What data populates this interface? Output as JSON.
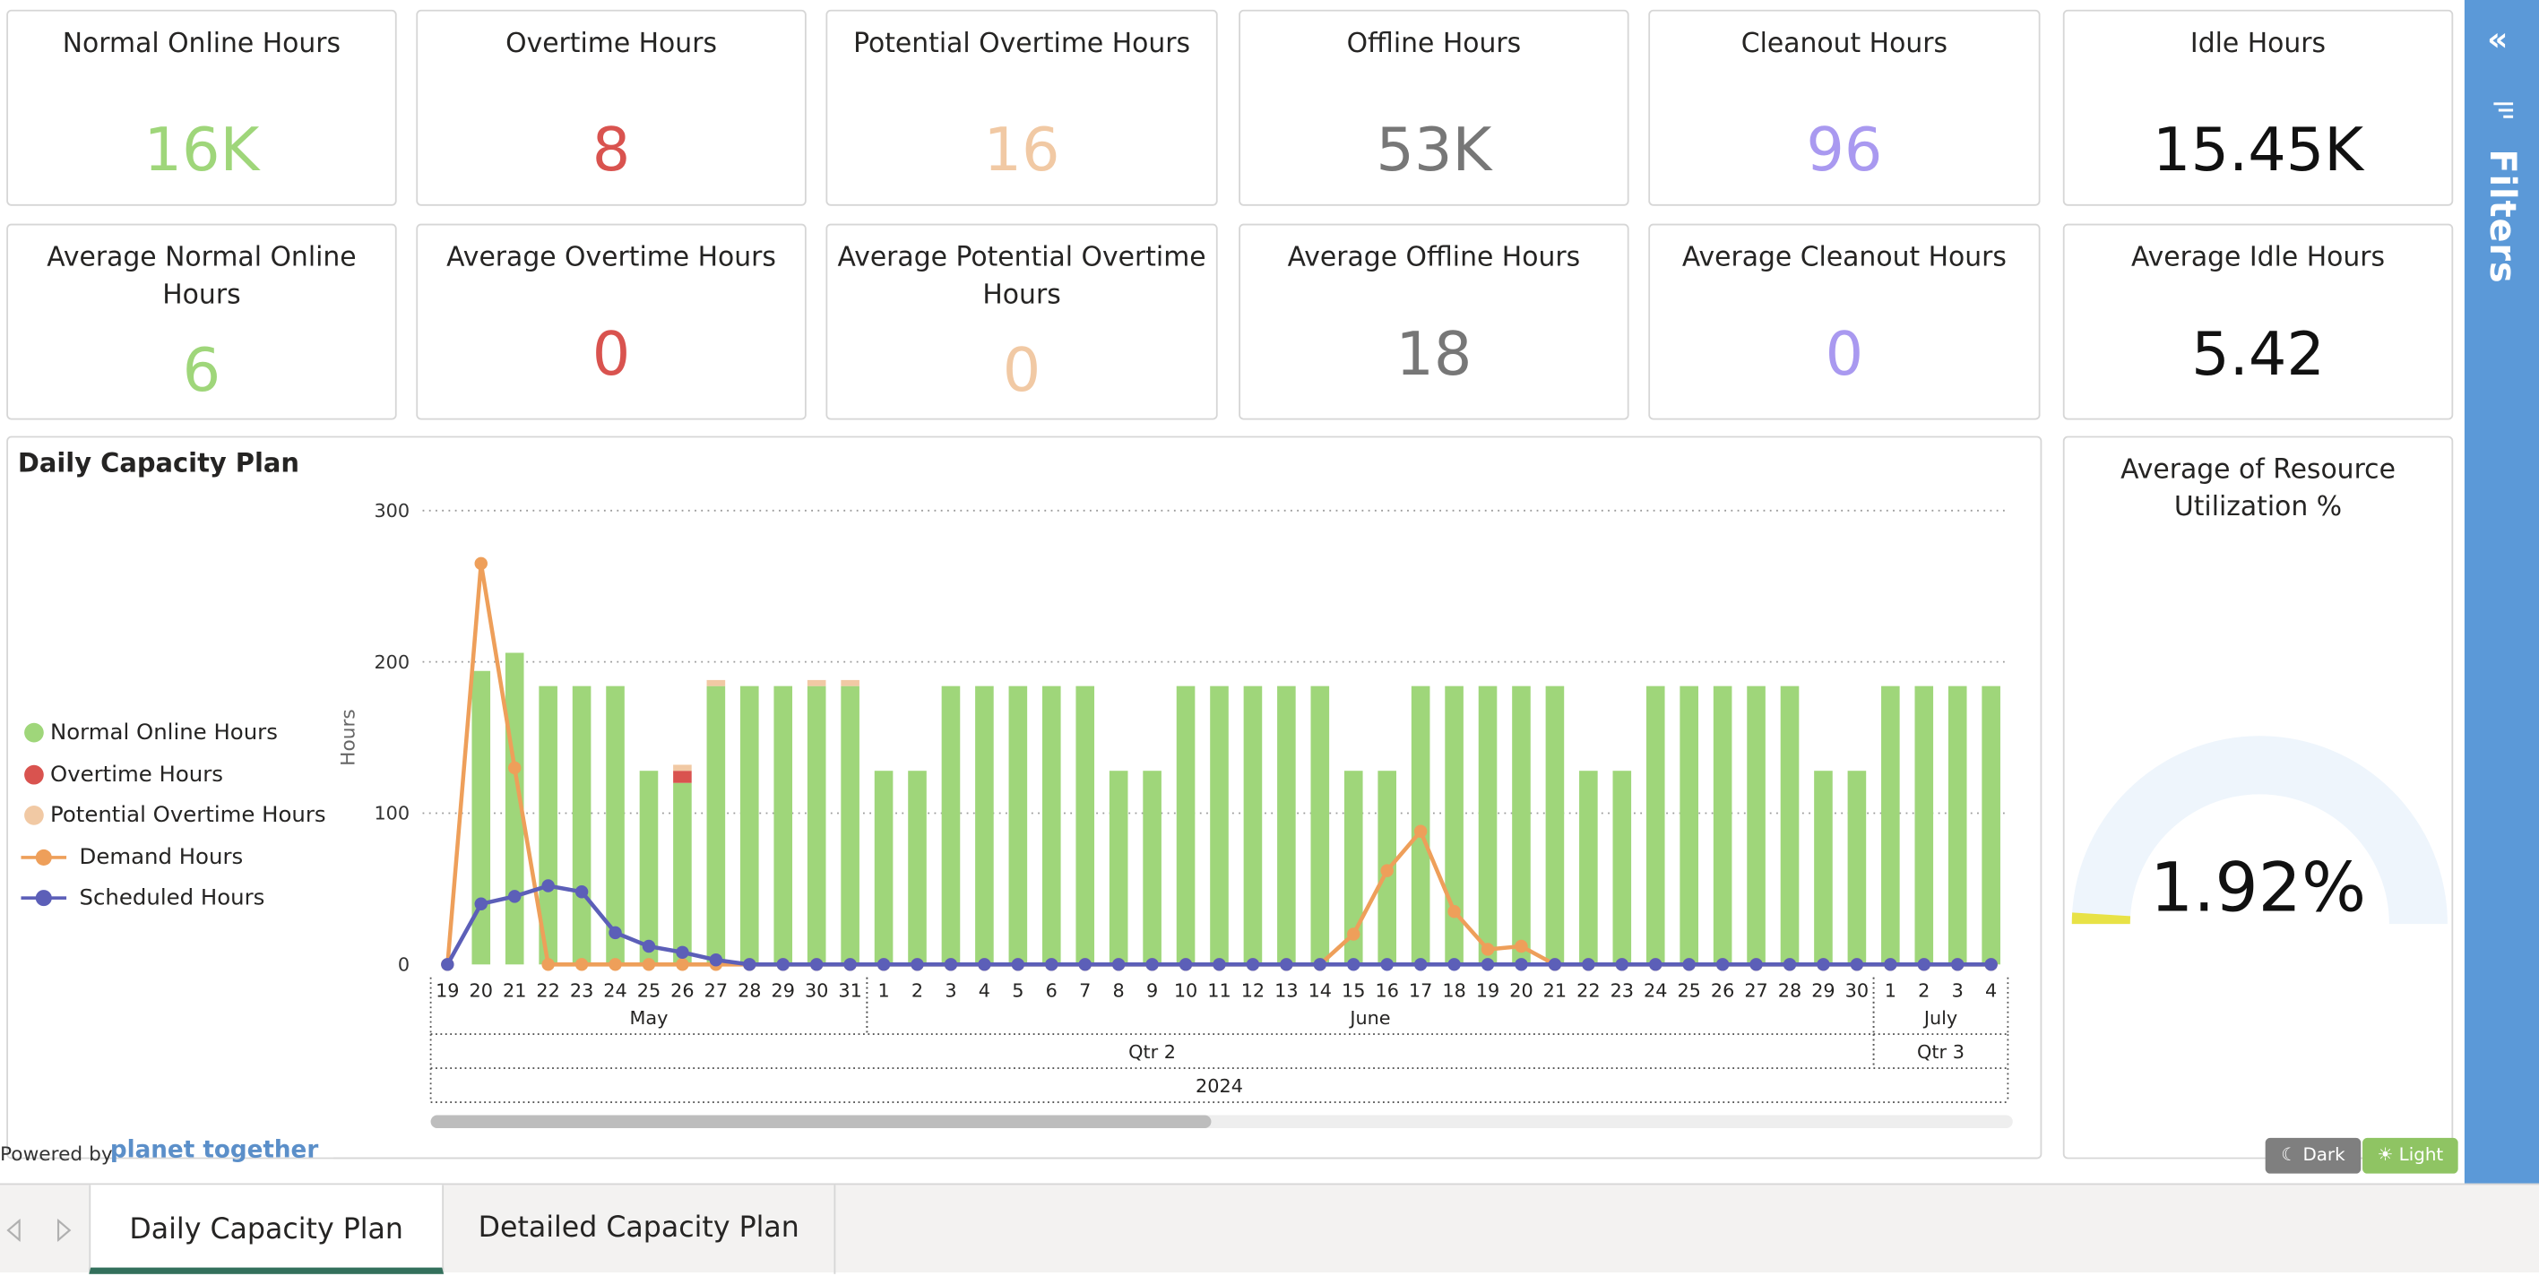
{
  "kpis": [
    {
      "title": "Normal Online Hours",
      "value": "16K",
      "color": "#9fd67a"
    },
    {
      "title": "Overtime Hours",
      "value": "8",
      "color": "#d9534f"
    },
    {
      "title": "Potential Overtime Hours",
      "value": "16",
      "color": "#f1c9a4"
    },
    {
      "title": "Offline Hours",
      "value": "53K",
      "color": "#777777"
    },
    {
      "title": "Cleanout Hours",
      "value": "96",
      "color": "#a999f0"
    },
    {
      "title": "Idle Hours",
      "value": "15.45K",
      "color": "#111111"
    },
    {
      "title": "Average Normal Online Hours",
      "value": "6",
      "color": "#9fd67a"
    },
    {
      "title": "Average Overtime Hours",
      "value": "0",
      "color": "#d9534f"
    },
    {
      "title": "Average Potential Overtime Hours",
      "value": "0",
      "color": "#f1c9a4"
    },
    {
      "title": "Average Offline Hours",
      "value": "18",
      "color": "#777777"
    },
    {
      "title": "Average Cleanout Hours",
      "value": "0",
      "color": "#a999f0"
    },
    {
      "title": "Average Idle Hours",
      "value": "5.42",
      "color": "#111111"
    }
  ],
  "chart_panel": {
    "title": "Daily Capacity Plan"
  },
  "legend": [
    {
      "label": "Normal Online Hours",
      "color": "#9fd67a",
      "kind": "dot"
    },
    {
      "label": "Overtime Hours",
      "color": "#d9534f",
      "kind": "dot"
    },
    {
      "label": "Potential Overtime Hours",
      "color": "#f1c9a4",
      "kind": "dot"
    },
    {
      "label": "Demand Hours",
      "color": "#ee9f5a",
      "kind": "line"
    },
    {
      "label": "Scheduled Hours",
      "color": "#5c5fb8",
      "kind": "line"
    }
  ],
  "chart_data": {
    "type": "bar",
    "title": "Daily Capacity Plan",
    "xlabel": "",
    "ylabel": "Hours",
    "ylim": [
      0,
      300
    ],
    "yticks": [
      0,
      100,
      200,
      300
    ],
    "categories": [
      "19",
      "20",
      "21",
      "22",
      "23",
      "24",
      "25",
      "26",
      "27",
      "28",
      "29",
      "30",
      "31",
      "1",
      "2",
      "3",
      "4",
      "5",
      "6",
      "7",
      "8",
      "9",
      "10",
      "11",
      "12",
      "13",
      "14",
      "15",
      "16",
      "17",
      "18",
      "19",
      "20",
      "21",
      "22",
      "23",
      "24",
      "25",
      "26",
      "27",
      "28",
      "29",
      "30",
      "1",
      "2",
      "3",
      "4"
    ],
    "months": [
      {
        "label": "May",
        "count": 13
      },
      {
        "label": "June",
        "count": 30
      },
      {
        "label": "July",
        "count": 4
      }
    ],
    "quarters": [
      {
        "label": "Qtr 2",
        "count": 43
      },
      {
        "label": "Qtr 3",
        "count": 4
      }
    ],
    "years": [
      {
        "label": "2024",
        "count": 47
      }
    ],
    "bar_series": [
      {
        "name": "Normal Online Hours",
        "color": "#9fd67a",
        "values": [
          0,
          194,
          206,
          184,
          184,
          184,
          128,
          120,
          184,
          184,
          184,
          184,
          184,
          128,
          128,
          184,
          184,
          184,
          184,
          184,
          128,
          128,
          184,
          184,
          184,
          184,
          184,
          128,
          128,
          184,
          184,
          184,
          184,
          184,
          128,
          128,
          184,
          184,
          184,
          184,
          184,
          128,
          128,
          184,
          184,
          184,
          184
        ]
      },
      {
        "name": "Overtime Hours",
        "color": "#d9534f",
        "values": [
          0,
          0,
          0,
          0,
          0,
          0,
          0,
          8,
          0,
          0,
          0,
          0,
          0,
          0,
          0,
          0,
          0,
          0,
          0,
          0,
          0,
          0,
          0,
          0,
          0,
          0,
          0,
          0,
          0,
          0,
          0,
          0,
          0,
          0,
          0,
          0,
          0,
          0,
          0,
          0,
          0,
          0,
          0,
          0,
          0,
          0,
          0
        ]
      },
      {
        "name": "Potential Overtime Hours",
        "color": "#f1c9a4",
        "values": [
          0,
          0,
          0,
          0,
          0,
          0,
          0,
          4,
          4,
          0,
          0,
          4,
          4,
          0,
          0,
          0,
          0,
          0,
          0,
          0,
          0,
          0,
          0,
          0,
          0,
          0,
          0,
          0,
          0,
          0,
          0,
          0,
          0,
          0,
          0,
          0,
          0,
          0,
          0,
          0,
          0,
          0,
          0,
          0,
          0,
          0,
          0
        ]
      }
    ],
    "line_series": [
      {
        "name": "Demand Hours",
        "color": "#ee9f5a",
        "values": [
          0,
          265,
          130,
          0,
          0,
          0,
          0,
          0,
          0,
          0,
          0,
          0,
          0,
          0,
          0,
          0,
          0,
          0,
          0,
          0,
          0,
          0,
          0,
          0,
          0,
          0,
          0,
          20,
          62,
          88,
          35,
          10,
          12,
          0,
          0,
          0,
          0,
          0,
          0,
          0,
          0,
          0,
          0,
          0,
          0,
          0,
          0
        ]
      },
      {
        "name": "Scheduled Hours",
        "color": "#5c5fb8",
        "values": [
          0,
          40,
          45,
          52,
          48,
          21,
          12,
          8,
          3,
          0,
          0,
          0,
          0,
          0,
          0,
          0,
          0,
          0,
          0,
          0,
          0,
          0,
          0,
          0,
          0,
          0,
          0,
          0,
          0,
          0,
          0,
          0,
          0,
          0,
          0,
          0,
          0,
          0,
          0,
          0,
          0,
          0,
          0,
          0,
          0,
          0,
          0
        ]
      }
    ]
  },
  "gauge": {
    "title": "Average of Resource Utilization %",
    "value_text": "1.92%",
    "value": 1.92,
    "max": 100,
    "track_color": "#eef5fc",
    "fill_color": "#e8e246"
  },
  "footer": {
    "powered_by": "Powered by",
    "brand": "planet together",
    "brand_color": "#5b8fc9"
  },
  "theme": {
    "dark_label": "Dark",
    "light_label": "Light",
    "dark_icon": "moon-icon",
    "light_icon": "sun-icon",
    "dark_color": "#7f7f7f",
    "light_color": "#8fc463"
  },
  "filters": {
    "label": "Filters",
    "collapse_icon": "double-chevron-left-icon",
    "filter_icon": "filter-lines-icon",
    "color": "#5b99d8"
  },
  "tabs": [
    {
      "label": "Daily Capacity Plan",
      "active": true
    },
    {
      "label": "Detailed Capacity Plan",
      "active": false
    }
  ],
  "tab_nav": {
    "prev_icon": "triangle-left-icon",
    "next_icon": "triangle-right-icon"
  }
}
